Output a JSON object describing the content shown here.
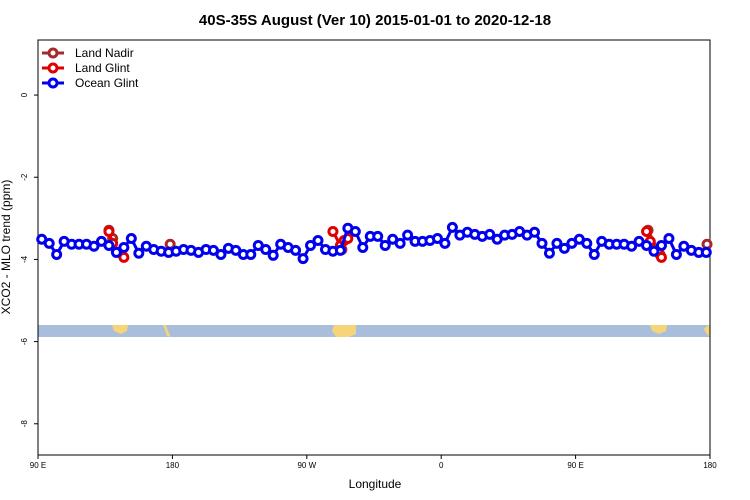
{
  "chart_data": {
    "type": "line",
    "title": "40S-35S August (Ver 10)   2015-01-01 to 2020-12-18",
    "x_label": "Longitude",
    "y_label": "XCO2 - MLO trend (ppm)",
    "xlim": [
      90,
      540
    ],
    "ylim": [
      -8.76,
      1.34
    ],
    "xticks": [
      {
        "value": 90,
        "label": "90 E"
      },
      180,
      {
        "value": 270,
        "label": "90 W"
      },
      {
        "value": 360,
        "label": "0"
      },
      {
        "value": 450,
        "label": "90 E"
      },
      {
        "value": 540,
        "label": "180"
      }
    ],
    "yticks": [
      0,
      -2,
      -4,
      -6,
      -8
    ],
    "legend": "top-left",
    "series": [
      {
        "name": "Land Nadir",
        "color": "#a52a2a",
        "x": [
          137.5,
          140,
          178.5,
          293.5,
          498.5,
          506.5,
          538
        ],
        "values": [
          -3.29,
          -3.49,
          -3.63,
          -3.76,
          -3.29,
          -3.88,
          -3.63
        ]
      },
      {
        "name": "Land Glint",
        "color": "#e00000",
        "x": [
          137.5,
          140,
          145,
          147.5,
          287.5,
          292.5,
          295,
          297.5,
          497.5,
          500,
          505,
          507.5
        ],
        "values": [
          -3.32,
          -3.61,
          -3.83,
          -3.95,
          -3.32,
          -3.66,
          -3.54,
          -3.49,
          -3.32,
          -3.56,
          -3.8,
          -3.95
        ]
      },
      {
        "name": "Ocean Glint",
        "color": "#0000ee",
        "x": [
          92.5,
          97.5,
          102.5,
          107.5,
          112.5,
          117.5,
          122.5,
          127.5,
          132.5,
          137.5,
          142.5,
          147.5,
          152.5,
          157.5,
          162.5,
          167.5,
          172.5,
          177.5,
          182.5,
          187.5,
          192.5,
          197.5,
          202.5,
          207.5,
          212.5,
          217.5,
          222.5,
          227.5,
          232.5,
          237.5,
          242.5,
          247.5,
          252.5,
          257.5,
          262.5,
          267.5,
          272.5,
          277.5,
          282.5,
          287.5,
          292.5,
          297.5,
          302.5,
          307.5,
          312.5,
          317.5,
          322.5,
          327.5,
          332.5,
          337.5,
          342.5,
          347.5,
          352.5,
          357.5,
          362.5,
          367.5,
          372.5,
          377.5,
          382.5,
          387.5,
          392.5,
          397.5,
          402.5,
          407.5,
          412.5,
          417.5,
          422.5,
          427.5,
          432.5,
          437.5,
          442.5,
          447.5,
          452.5,
          457.5,
          462.5,
          467.5,
          472.5,
          477.5,
          482.5,
          487.5,
          492.5,
          497.5,
          502.5,
          507.5,
          512.5,
          517.5,
          522.5,
          527.5,
          532.5,
          537.5
        ],
        "values": [
          -3.51,
          -3.61,
          -3.88,
          -3.56,
          -3.63,
          -3.63,
          -3.63,
          -3.68,
          -3.56,
          -3.66,
          -3.83,
          -3.71,
          -3.49,
          -3.85,
          -3.68,
          -3.76,
          -3.8,
          -3.83,
          -3.8,
          -3.76,
          -3.78,
          -3.83,
          -3.76,
          -3.78,
          -3.88,
          -3.73,
          -3.78,
          -3.88,
          -3.88,
          -3.66,
          -3.76,
          -3.9,
          -3.63,
          -3.71,
          -3.78,
          -3.98,
          -3.66,
          -3.54,
          -3.76,
          -3.8,
          -3.78,
          -3.24,
          -3.32,
          -3.71,
          -3.44,
          -3.44,
          -3.66,
          -3.51,
          -3.61,
          -3.41,
          -3.56,
          -3.56,
          -3.54,
          -3.49,
          -3.61,
          -3.22,
          -3.41,
          -3.34,
          -3.39,
          -3.44,
          -3.39,
          -3.51,
          -3.41,
          -3.39,
          -3.32,
          -3.41,
          -3.34,
          -3.61,
          -3.85,
          -3.61,
          -3.73,
          -3.61,
          -3.51,
          -3.61,
          -3.88,
          -3.56,
          -3.63,
          -3.63,
          -3.63,
          -3.68,
          -3.56,
          -3.66,
          -3.8,
          -3.66,
          -3.49,
          -3.88,
          -3.68,
          -3.78,
          -3.83,
          -3.83
        ]
      }
    ]
  }
}
